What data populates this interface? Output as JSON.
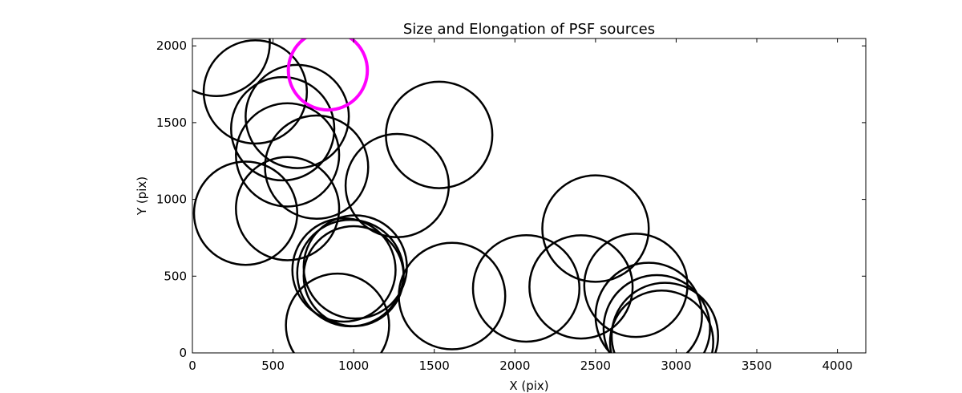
{
  "chart_data": {
    "type": "scatter",
    "title": "Size and Elongation of PSF sources",
    "xlabel": "X (pix)",
    "ylabel": "Y (pix)",
    "xlim": [
      0,
      4176
    ],
    "ylim": [
      0,
      2048
    ],
    "xticks": [
      0,
      500,
      1000,
      1500,
      2000,
      2500,
      3000,
      3500,
      4000
    ],
    "yticks": [
      0,
      500,
      1000,
      1500,
      2000
    ],
    "grid": false,
    "legend": "none",
    "colors": {
      "default": "#000000",
      "highlight": "#ff00ff"
    },
    "sources": [
      {
        "x": 150,
        "y": 2020,
        "r": 330
      },
      {
        "x": 390,
        "y": 1700,
        "r": 320
      },
      {
        "x": 560,
        "y": 1460,
        "r": 320
      },
      {
        "x": 650,
        "y": 1540,
        "r": 320
      },
      {
        "x": 840,
        "y": 1840,
        "r": 245,
        "highlight": true
      },
      {
        "x": 590,
        "y": 1290,
        "r": 320
      },
      {
        "x": 770,
        "y": 1210,
        "r": 320
      },
      {
        "x": 1270,
        "y": 1090,
        "r": 320
      },
      {
        "x": 1530,
        "y": 1420,
        "r": 330
      },
      {
        "x": 330,
        "y": 910,
        "r": 320
      },
      {
        "x": 590,
        "y": 940,
        "r": 320
      },
      {
        "x": 940,
        "y": 540,
        "r": 320
      },
      {
        "x": 980,
        "y": 520,
        "r": 330
      },
      {
        "x": 1010,
        "y": 560,
        "r": 320
      },
      {
        "x": 1000,
        "y": 500,
        "r": 310
      },
      {
        "x": 900,
        "y": 180,
        "r": 320
      },
      {
        "x": 1610,
        "y": 370,
        "r": 330
      },
      {
        "x": 2070,
        "y": 420,
        "r": 330
      },
      {
        "x": 2410,
        "y": 430,
        "r": 320
      },
      {
        "x": 2500,
        "y": 810,
        "r": 330
      },
      {
        "x": 2750,
        "y": 440,
        "r": 320
      },
      {
        "x": 2830,
        "y": 240,
        "r": 330
      },
      {
        "x": 2880,
        "y": 160,
        "r": 330
      },
      {
        "x": 2930,
        "y": 110,
        "r": 330
      },
      {
        "x": 2910,
        "y": 70,
        "r": 320
      }
    ]
  }
}
